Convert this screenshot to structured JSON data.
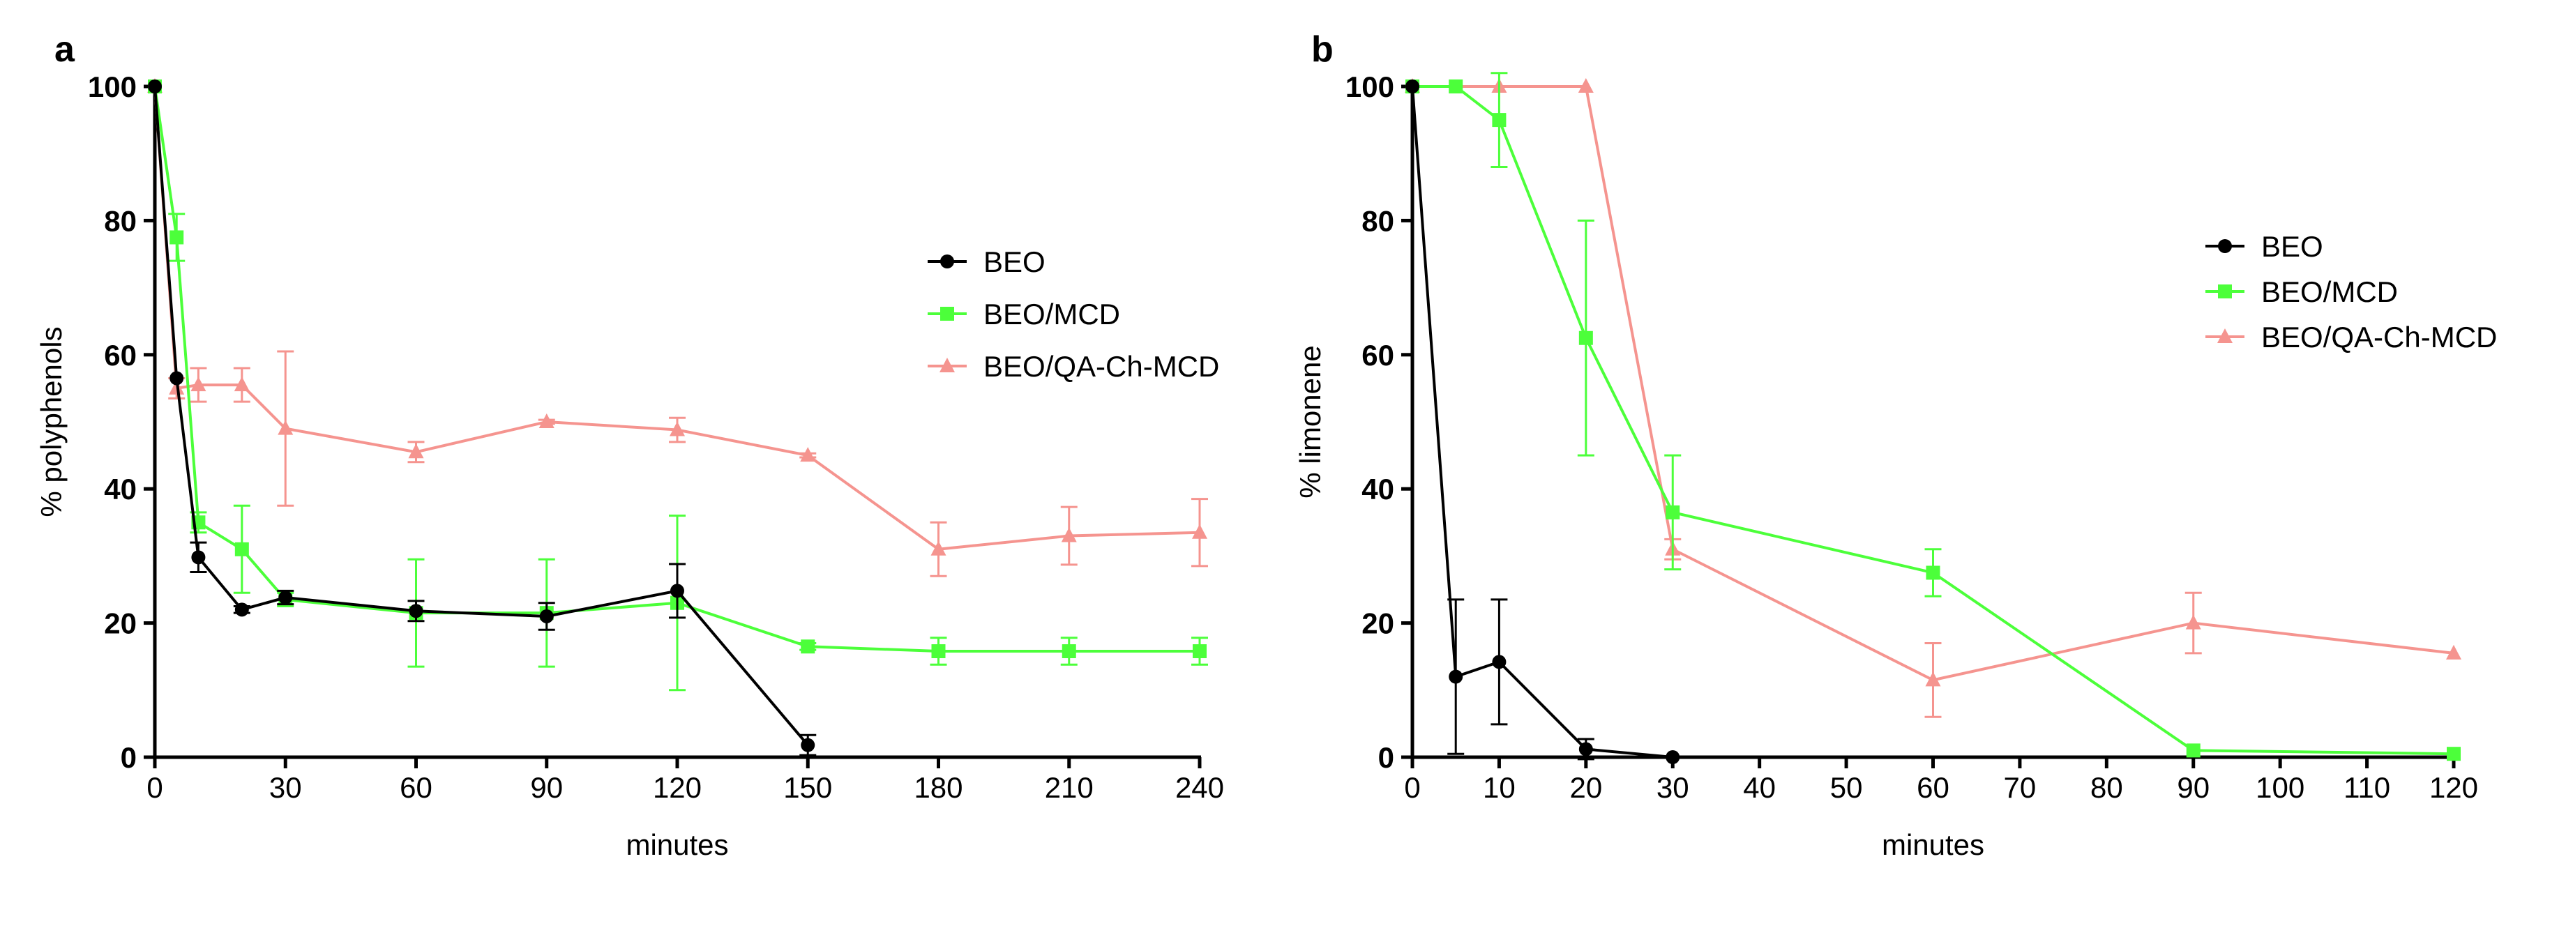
{
  "chart_data": [
    {
      "panel_label": "a",
      "type": "line",
      "xlabel": "minutes",
      "ylabel": "% polyphenols",
      "xlim": [
        0,
        240
      ],
      "ylim": [
        0,
        100
      ],
      "xticks": [
        0,
        30,
        60,
        90,
        120,
        150,
        180,
        210,
        240
      ],
      "yticks": [
        0,
        20,
        40,
        60,
        80,
        100
      ],
      "grid": false,
      "legend_position": "right",
      "series": [
        {
          "name": "BEO",
          "color": "#000000",
          "marker": "circle",
          "x": [
            0,
            5,
            10,
            20,
            30,
            60,
            90,
            120,
            150
          ],
          "y": [
            100,
            56.5,
            29.8,
            22.0,
            23.8,
            21.8,
            21.0,
            24.8,
            1.8
          ],
          "err": [
            0,
            0,
            2.2,
            0.5,
            1.0,
            1.5,
            2.0,
            4.0,
            1.5
          ]
        },
        {
          "name": "BEO/MCD",
          "color": "#4cff3a",
          "marker": "square",
          "x": [
            0,
            5,
            10,
            20,
            30,
            60,
            90,
            120,
            150,
            180,
            210,
            240
          ],
          "y": [
            100,
            77.5,
            35.0,
            31.0,
            23.5,
            21.5,
            21.5,
            23.0,
            16.5,
            15.8,
            15.8,
            15.8
          ],
          "err": [
            0,
            3.5,
            1.5,
            6.5,
            1.0,
            8.0,
            8.0,
            13.0,
            0.5,
            2.0,
            2.0,
            2.0
          ]
        },
        {
          "name": "BEO/QA-Ch-MCD",
          "color": "#f5948f",
          "marker": "triangle",
          "x": [
            0,
            5,
            10,
            20,
            30,
            60,
            90,
            120,
            150,
            180,
            210,
            240
          ],
          "y": [
            100,
            55.0,
            55.5,
            55.5,
            49.0,
            45.5,
            50.0,
            48.8,
            45.0,
            31.0,
            33.0,
            33.5
          ],
          "err": [
            0,
            1.5,
            2.5,
            2.5,
            11.5,
            1.5,
            0.3,
            1.8,
            0.3,
            4.0,
            4.3,
            5.0
          ]
        }
      ]
    },
    {
      "panel_label": "b",
      "type": "line",
      "xlabel": "minutes",
      "ylabel": "% limonene",
      "xlim": [
        0,
        120
      ],
      "ylim": [
        0,
        100
      ],
      "xticks": [
        0,
        10,
        20,
        30,
        40,
        50,
        60,
        70,
        80,
        90,
        100,
        110,
        120
      ],
      "yticks": [
        0,
        20,
        40,
        60,
        80,
        100
      ],
      "grid": false,
      "legend_position": "right",
      "series": [
        {
          "name": "BEO",
          "color": "#000000",
          "marker": "circle",
          "x": [
            0,
            5,
            10,
            20,
            30
          ],
          "y": [
            100,
            12.0,
            14.2,
            1.2,
            0
          ],
          "err": [
            0,
            11.5,
            9.3,
            1.5,
            0
          ]
        },
        {
          "name": "BEO/MCD",
          "color": "#4cff3a",
          "marker": "square",
          "x": [
            0,
            5,
            10,
            20,
            30,
            60,
            90,
            120
          ],
          "y": [
            100,
            100,
            95.0,
            62.5,
            36.5,
            27.5,
            1.0,
            0.5
          ],
          "err": [
            0,
            0,
            7.0,
            17.5,
            8.5,
            3.5,
            0,
            0
          ]
        },
        {
          "name": "BEO/QA-Ch-MCD",
          "color": "#f5948f",
          "marker": "triangle",
          "x": [
            0,
            10,
            20,
            30,
            60,
            90,
            120
          ],
          "y": [
            100,
            100,
            100,
            31.0,
            11.5,
            20.0,
            15.5
          ],
          "err": [
            0,
            0,
            0,
            1.5,
            5.5,
            4.5,
            0
          ]
        }
      ]
    }
  ]
}
